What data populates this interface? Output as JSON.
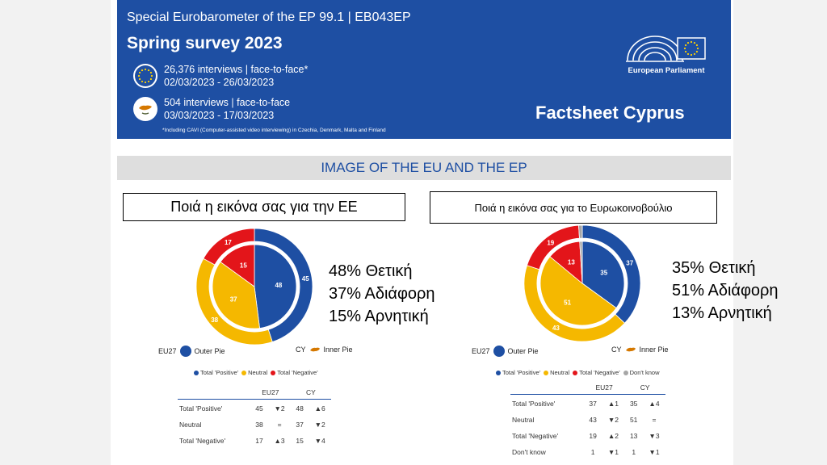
{
  "header": {
    "line1": "Special Eurobarometer of the EP 99.1 | EB043EP",
    "title": "Spring survey 2023",
    "eu_interviews": "26,376 interviews | face-to-face*",
    "eu_dates": "02/03/2023 - 26/03/2023",
    "cy_interviews": "504 interviews | face-to-face",
    "cy_dates": "03/03/2023 - 17/03/2023",
    "note": "*Including CAVI (Computer-assisted video interviewing) in Czechia, Denmark, Malta and Finland",
    "institution": "European Parliament",
    "factsheet": "Factsheet Cyprus"
  },
  "section_title": "IMAGE OF THE EU AND THE EP",
  "colors": {
    "positive": "#1e4fa3",
    "neutral": "#f5b800",
    "negative": "#e3151a",
    "dont_know": "#a6a6a6",
    "header_bg": "#1e4fa3"
  },
  "legend_labels": {
    "eu27": "EU27",
    "outer": "Outer Pie",
    "cy": "CY",
    "inner": "Inner Pie",
    "positive": "Total 'Positive'",
    "neutral": "Neutral",
    "negative": "Total 'Negative'",
    "dont_know": "Don't know"
  },
  "chart_data": [
    {
      "type": "pie",
      "title": "Ποιά η εικόνα σας για την ΕΕ",
      "categories": [
        "Total 'Positive'",
        "Neutral",
        "Total 'Negative'"
      ],
      "series": [
        {
          "name": "EU27",
          "values": [
            45,
            38,
            17
          ]
        },
        {
          "name": "CY",
          "values": [
            48,
            37,
            15
          ]
        }
      ],
      "summary": [
        "48% Θετική",
        "37% Αδιάφορη",
        "15% Αρνητική"
      ],
      "table": {
        "columns": [
          "EU27",
          "CY"
        ],
        "rows": [
          {
            "label": "Total 'Positive'",
            "eu": "45",
            "eu_change": "▼2",
            "cy": "48",
            "cy_change": "▲6"
          },
          {
            "label": "Neutral",
            "eu": "38",
            "eu_change": "=",
            "cy": "37",
            "cy_change": "▼2"
          },
          {
            "label": "Total 'Negative'",
            "eu": "17",
            "eu_change": "▲3",
            "cy": "15",
            "cy_change": "▼4"
          }
        ]
      }
    },
    {
      "type": "pie",
      "title": "Ποιά η εικόνα σας για το Ευρωκοινοβούλιο",
      "categories": [
        "Total 'Positive'",
        "Neutral",
        "Total 'Negative'",
        "Don't know"
      ],
      "series": [
        {
          "name": "EU27",
          "values": [
            37,
            43,
            19,
            1
          ]
        },
        {
          "name": "CY",
          "values": [
            35,
            51,
            13,
            1
          ]
        }
      ],
      "summary": [
        "35% Θετική",
        "51% Αδιάφορη",
        "13% Αρνητική"
      ],
      "table": {
        "columns": [
          "EU27",
          "CY"
        ],
        "rows": [
          {
            "label": "Total 'Positive'",
            "eu": "37",
            "eu_change": "▲1",
            "cy": "35",
            "cy_change": "▲4"
          },
          {
            "label": "Neutral",
            "eu": "43",
            "eu_change": "▼2",
            "cy": "51",
            "cy_change": "="
          },
          {
            "label": "Total 'Negative'",
            "eu": "19",
            "eu_change": "▲2",
            "cy": "13",
            "cy_change": "▼3"
          },
          {
            "label": "Don't know",
            "eu": "1",
            "eu_change": "▼1",
            "cy": "1",
            "cy_change": "▼1"
          }
        ]
      }
    }
  ]
}
